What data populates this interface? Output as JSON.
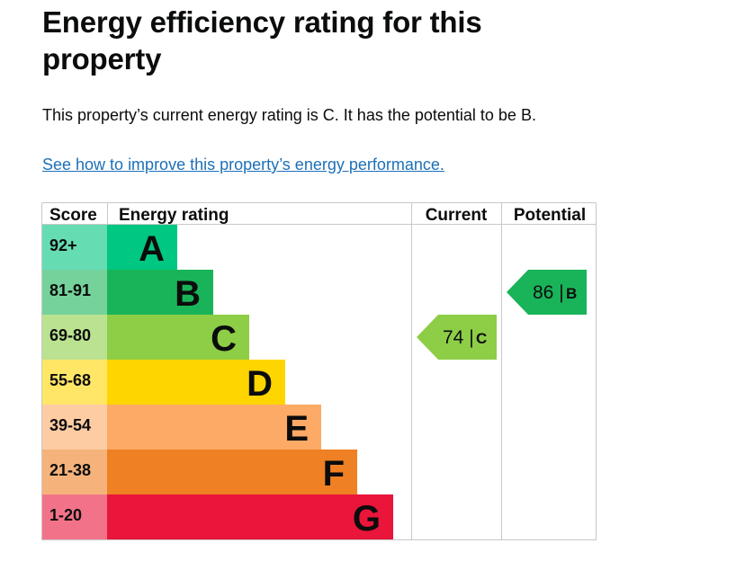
{
  "page": {
    "title": "Energy efficiency rating for this property",
    "summary": "This property’s current energy rating is C. It has the potential to be B.",
    "improve_link": "See how to improve this property’s energy performance."
  },
  "table": {
    "headers": {
      "score": "Score",
      "energy_rating": "Energy rating",
      "current": "Current",
      "potential": "Potential"
    },
    "bands": [
      {
        "letter": "A",
        "range": "92+",
        "color": "#00c781",
        "score_color": "#66dcb3"
      },
      {
        "letter": "B",
        "range": "81-91",
        "color": "#19b459",
        "score_color": "#75d29b"
      },
      {
        "letter": "C",
        "range": "69-80",
        "color": "#8dce46",
        "score_color": "#bbe290"
      },
      {
        "letter": "D",
        "range": "55-68",
        "color": "#ffd500",
        "score_color": "#ffe666"
      },
      {
        "letter": "E",
        "range": "39-54",
        "color": "#fcaa65",
        "score_color": "#fdcca3"
      },
      {
        "letter": "F",
        "range": "21-38",
        "color": "#ef8023",
        "score_color": "#f5b37b"
      },
      {
        "letter": "G",
        "range": "1-20",
        "color": "#e9153b",
        "score_color": "#f27389"
      }
    ],
    "current": {
      "score": "74 |",
      "letter": "C",
      "color": "#8dce46"
    },
    "potential": {
      "score": "86 |",
      "letter": "B",
      "color": "#19b459"
    }
  }
}
